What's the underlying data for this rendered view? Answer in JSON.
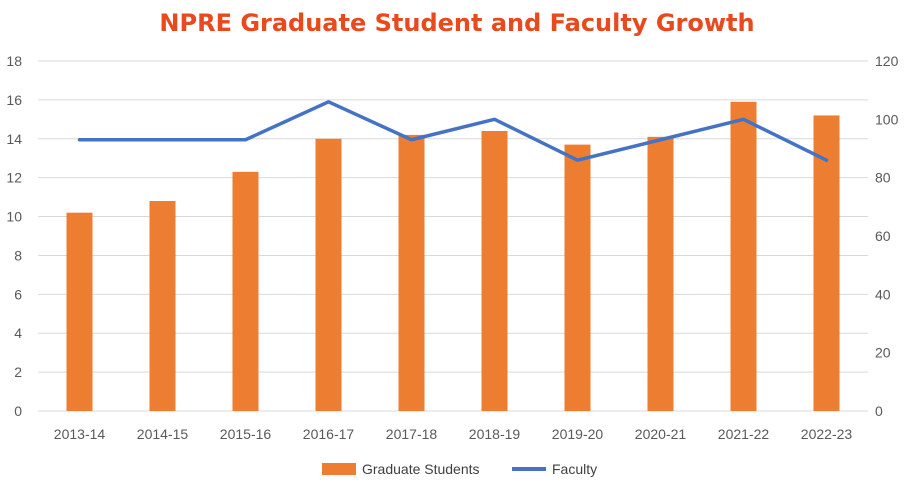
{
  "chart_data": {
    "type": "bar+line",
    "title": "NPRE Graduate Student and Faculty Growth",
    "categories": [
      "2013-14",
      "2014-15",
      "2015-16",
      "2016-17",
      "2017-18",
      "2018-19",
      "2019-20",
      "2020-21",
      "2021-22",
      "2022-23"
    ],
    "series": [
      {
        "name": "Graduate Students",
        "type": "bar",
        "axis": "left",
        "values": [
          10.2,
          10.8,
          12.3,
          14.0,
          14.2,
          14.4,
          13.7,
          14.1,
          15.9,
          15.2
        ],
        "color": "#ED7D31"
      },
      {
        "name": "Faculty",
        "type": "line",
        "axis": "right",
        "values": [
          93,
          93,
          93,
          106,
          93,
          100,
          86,
          93,
          100,
          86
        ],
        "color": "#4472C4"
      }
    ],
    "y_left": {
      "min": 0,
      "max": 18,
      "step": 2,
      "ticks": [
        "0",
        "2",
        "4",
        "6",
        "8",
        "10",
        "12",
        "14",
        "16",
        "18"
      ]
    },
    "y_right": {
      "min": 0,
      "max": 120,
      "step": 20,
      "ticks": [
        "0",
        "20",
        "40",
        "60",
        "80",
        "100",
        "120"
      ]
    },
    "grid": true,
    "legend": "bottom",
    "colors": {
      "title": "#E8491D",
      "grid": "#D9D9D9",
      "tick_text": "#595959"
    }
  }
}
